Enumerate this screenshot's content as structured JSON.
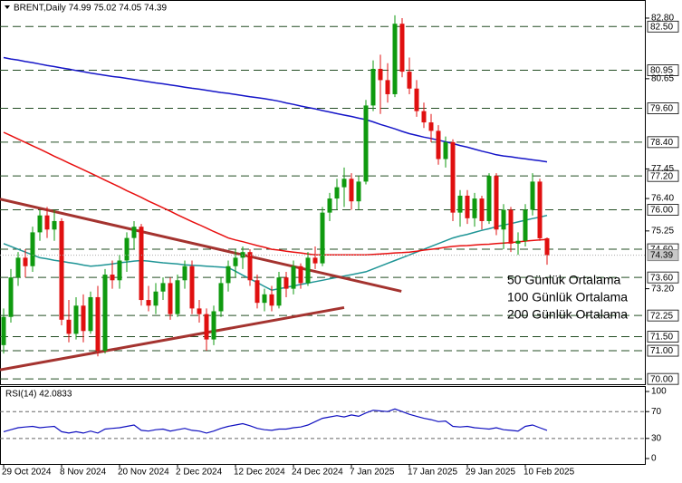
{
  "chart_data": [
    {
      "type": "candlestick",
      "title": "BRENT,Daily  74.99 75.02 74.05 74.39",
      "categories": [
        "29 Oct 2024",
        null,
        null,
        null,
        null,
        null,
        null,
        null,
        "8 Nov 2024",
        null,
        null,
        null,
        null,
        null,
        null,
        null,
        "20 Nov 2024",
        null,
        null,
        null,
        null,
        null,
        null,
        null,
        "2 Dec 2024",
        null,
        null,
        null,
        null,
        null,
        null,
        null,
        "12 Dec 2024",
        null,
        null,
        null,
        null,
        null,
        null,
        null,
        "24 Dec 2024",
        null,
        null,
        null,
        null,
        null,
        null,
        null,
        "7 Jan 2025",
        null,
        null,
        null,
        null,
        null,
        null,
        null,
        "17 Jan 2025",
        null,
        null,
        null,
        null,
        null,
        null,
        null,
        "29 Jan 2025",
        null,
        null,
        null,
        null,
        null,
        null,
        null,
        "10 Feb 2025",
        null,
        null,
        null
      ],
      "open": [
        71.2,
        72.2,
        73.6,
        74.3,
        74.0,
        75.2,
        75.8,
        75.3,
        75.6,
        72.1,
        71.6,
        72.6,
        71.7,
        72.9,
        71.0,
        73.7,
        73.5,
        74.2,
        75.0,
        75.4,
        72.8,
        72.6,
        73.1,
        73.4,
        72.3,
        73.5,
        74.0,
        72.5,
        72.3,
        71.4,
        72.4,
        73.4,
        74.0,
        74.3,
        74.5,
        73.5,
        72.7,
        73.0,
        72.6,
        73.6,
        73.2,
        74.0,
        73.4,
        74.3,
        74.1,
        75.9,
        76.4,
        76.8,
        77.1,
        76.3,
        77.0,
        79.7,
        81.0,
        80.6,
        80.1,
        82.6,
        80.9,
        80.3,
        79.5,
        79.1,
        78.8,
        77.8,
        78.4,
        75.9,
        76.5,
        75.7,
        76.4,
        75.6,
        77.2,
        75.3,
        76.0,
        74.8,
        74.9,
        76.0,
        77.0,
        74.99
      ],
      "high": [
        72.5,
        73.9,
        74.5,
        74.6,
        75.4,
        76.0,
        76.1,
        76.0,
        75.7,
        72.8,
        72.9,
        73.0,
        73.1,
        73.3,
        73.9,
        74.2,
        74.4,
        75.2,
        75.6,
        75.5,
        73.3,
        73.4,
        73.6,
        73.6,
        73.7,
        74.2,
        74.2,
        72.8,
        72.5,
        72.6,
        73.6,
        74.2,
        74.6,
        74.7,
        74.6,
        73.7,
        73.2,
        73.3,
        73.8,
        73.8,
        74.2,
        74.1,
        74.5,
        74.7,
        76.1,
        76.6,
        77.1,
        77.5,
        77.3,
        77.2,
        79.9,
        81.3,
        81.5,
        81.2,
        82.9,
        82.8,
        81.4,
        80.6,
        79.8,
        79.4,
        79.0,
        78.6,
        78.5,
        76.7,
        76.7,
        76.6,
        76.5,
        77.3,
        77.3,
        76.2,
        76.1,
        75.2,
        76.2,
        77.3,
        77.1,
        75.02
      ],
      "low": [
        70.9,
        72.0,
        73.3,
        73.6,
        73.8,
        74.9,
        75.0,
        74.9,
        71.9,
        71.3,
        71.4,
        71.3,
        71.6,
        70.8,
        70.9,
        73.2,
        73.2,
        73.8,
        74.6,
        72.6,
        72.4,
        72.3,
        72.8,
        72.1,
        72.2,
        73.2,
        72.3,
        72.0,
        71.0,
        71.2,
        72.2,
        73.1,
        73.6,
        73.9,
        73.3,
        72.5,
        72.4,
        72.4,
        72.5,
        72.9,
        73.0,
        73.2,
        73.3,
        73.9,
        74.0,
        75.6,
        76.0,
        76.1,
        76.0,
        76.0,
        76.9,
        79.5,
        79.4,
        79.8,
        80.0,
        80.7,
        80.1,
        79.3,
        78.9,
        78.4,
        77.6,
        77.5,
        75.6,
        75.4,
        75.5,
        75.4,
        75.3,
        75.5,
        75.1,
        74.6,
        74.5,
        74.4,
        74.7,
        75.8,
        74.9,
        74.05
      ],
      "close": [
        72.2,
        73.6,
        74.3,
        74.0,
        75.2,
        75.8,
        75.3,
        75.6,
        72.1,
        71.6,
        72.6,
        71.7,
        72.9,
        71.0,
        73.7,
        73.5,
        74.2,
        75.0,
        75.4,
        72.8,
        72.6,
        73.1,
        73.4,
        72.3,
        73.5,
        74.0,
        72.5,
        72.3,
        71.4,
        72.4,
        73.4,
        74.0,
        74.3,
        74.5,
        73.5,
        72.7,
        73.0,
        72.6,
        73.6,
        73.2,
        74.0,
        73.4,
        74.3,
        74.1,
        75.9,
        76.4,
        76.8,
        77.1,
        76.3,
        77.0,
        79.7,
        81.0,
        80.6,
        80.1,
        82.6,
        80.9,
        80.3,
        79.5,
        79.1,
        78.8,
        77.8,
        78.4,
        75.9,
        76.5,
        75.7,
        76.4,
        75.6,
        77.2,
        75.3,
        76.0,
        74.8,
        74.9,
        76.0,
        77.0,
        74.99,
        74.39
      ],
      "up_color": "#0f9a0f",
      "down_color": "#e01010",
      "series": [
        {
          "name": "50 Günlük Ortalama",
          "color": "#1f9596",
          "values": [
            74.8,
            74.7,
            74.6,
            74.5,
            74.4,
            74.3,
            74.26,
            74.21,
            74.17,
            74.13,
            74.09,
            74.04,
            74.0,
            74.02,
            74.05,
            74.08,
            74.12,
            74.15,
            74.18,
            74.2,
            74.18,
            74.15,
            74.12,
            74.1,
            74.08,
            74.05,
            74.03,
            74.02,
            74.0,
            73.98,
            73.97,
            73.95,
            73.82,
            73.68,
            73.55,
            73.42,
            73.28,
            73.15,
            73.2,
            73.25,
            73.3,
            73.35,
            73.4,
            73.45,
            73.5,
            73.55,
            73.6,
            73.65,
            73.7,
            73.75,
            73.8,
            73.9,
            74.0,
            74.1,
            74.2,
            74.3,
            74.4,
            74.5,
            74.6,
            74.7,
            74.8,
            74.9,
            75.0,
            75.07,
            75.13,
            75.2,
            75.27,
            75.33,
            75.4,
            75.46,
            75.51,
            75.57,
            75.63,
            75.69,
            75.74,
            75.8
          ]
        },
        {
          "name": "100 Günlük Ortalama",
          "color": "#e81010",
          "values": [
            78.75,
            78.63,
            78.51,
            78.39,
            78.27,
            78.15,
            78.03,
            77.9,
            77.78,
            77.66,
            77.54,
            77.42,
            77.3,
            77.18,
            77.05,
            76.93,
            76.81,
            76.68,
            76.56,
            76.44,
            76.31,
            76.19,
            76.07,
            75.95,
            75.82,
            75.7,
            75.58,
            75.47,
            75.35,
            75.23,
            75.12,
            75.0,
            74.93,
            74.87,
            74.8,
            74.73,
            74.67,
            74.6,
            74.57,
            74.53,
            74.5,
            74.47,
            74.43,
            74.4,
            74.4,
            74.4,
            74.4,
            74.4,
            74.4,
            74.4,
            74.4,
            74.42,
            74.43,
            74.45,
            74.47,
            74.48,
            74.5,
            74.53,
            74.57,
            74.6,
            74.63,
            74.67,
            74.7,
            74.72,
            74.73,
            74.75,
            74.77,
            74.78,
            74.8,
            74.82,
            74.84,
            74.86,
            74.89,
            74.91,
            74.93,
            74.95
          ]
        },
        {
          "name": "200 Günlük Ortalama",
          "color": "#1515c8",
          "values": [
            81.4,
            81.35,
            81.31,
            81.26,
            81.22,
            81.17,
            81.12,
            81.08,
            81.03,
            80.99,
            80.94,
            80.9,
            80.85,
            80.81,
            80.77,
            80.73,
            80.7,
            80.66,
            80.62,
            80.58,
            80.54,
            80.5,
            80.47,
            80.43,
            80.39,
            80.35,
            80.31,
            80.28,
            80.24,
            80.2,
            80.16,
            80.13,
            80.09,
            80.05,
            80.01,
            79.98,
            79.94,
            79.9,
            79.85,
            79.79,
            79.74,
            79.68,
            79.63,
            79.58,
            79.52,
            79.47,
            79.41,
            79.36,
            79.31,
            79.25,
            79.2,
            79.12,
            79.03,
            78.95,
            78.87,
            78.78,
            78.7,
            78.64,
            78.58,
            78.53,
            78.47,
            78.41,
            78.35,
            78.28,
            78.22,
            78.15,
            78.08,
            78.02,
            77.95,
            77.91,
            77.88,
            77.84,
            77.81,
            77.77,
            77.74,
            77.7
          ]
        }
      ],
      "ylim": [
        69.78,
        83.41
      ],
      "yticks": [
        {
          "value": 82.8,
          "label": "82.80"
        },
        {
          "value": 80.65,
          "label": "80.65"
        },
        {
          "value": 77.45,
          "label": "77.45"
        },
        {
          "value": 76.4,
          "label": "76.40"
        },
        {
          "value": 75.25,
          "label": "75.25"
        },
        {
          "value": 73.2,
          "label": "73.20"
        }
      ],
      "levels": [
        {
          "value": 82.5,
          "label": "82.50"
        },
        {
          "value": 80.95,
          "label": "80.95"
        },
        {
          "value": 79.6,
          "label": "79.60"
        },
        {
          "value": 78.4,
          "label": "78.40"
        },
        {
          "value": 77.2,
          "label": "77.20"
        },
        {
          "value": 76,
          "label": "76.00"
        },
        {
          "value": 74.6,
          "label": "74.60"
        },
        {
          "value": 73.6,
          "label": "73.60"
        },
        {
          "value": 72.25,
          "label": "72.25"
        },
        {
          "value": 71.5,
          "label": "71.50"
        },
        {
          "value": 71,
          "label": "71.00"
        },
        {
          "value": 70,
          "label": "70.00"
        }
      ],
      "level_color": "#234d23",
      "last_price": {
        "value": 74.39,
        "label": "74.39"
      },
      "trendlines": [
        {
          "color": "#a4332f",
          "start": [
            -0.5,
            76.38
          ],
          "end": [
            54.9,
            73.11
          ]
        },
        {
          "color": "#a4332f",
          "start": [
            -0.5,
            70.32
          ],
          "end": [
            47,
            72.53
          ]
        }
      ],
      "legend": "right"
    },
    {
      "type": "line",
      "title": "RSI(14) 42.0833",
      "color": "#1010c0",
      "values": [
        40,
        43,
        46,
        47,
        48,
        46,
        47,
        48,
        40,
        38,
        40,
        38,
        41,
        38,
        44,
        45,
        46,
        48,
        50,
        42,
        41,
        43,
        44,
        41,
        43,
        45,
        42,
        41,
        38,
        41,
        45,
        48,
        50,
        52,
        49,
        45,
        43,
        42,
        44,
        44,
        46,
        47,
        50,
        55,
        60,
        62,
        64,
        62,
        65,
        63,
        68,
        72,
        71,
        70,
        74,
        70,
        66,
        63,
        60,
        58,
        55,
        56,
        48,
        47,
        48,
        46,
        45,
        44,
        46,
        43,
        42,
        41,
        48,
        50,
        46,
        42.0833
      ],
      "ylim": [
        -8.1,
        106.8
      ],
      "yticks": [
        0,
        30,
        70,
        100
      ],
      "grid": true
    }
  ]
}
